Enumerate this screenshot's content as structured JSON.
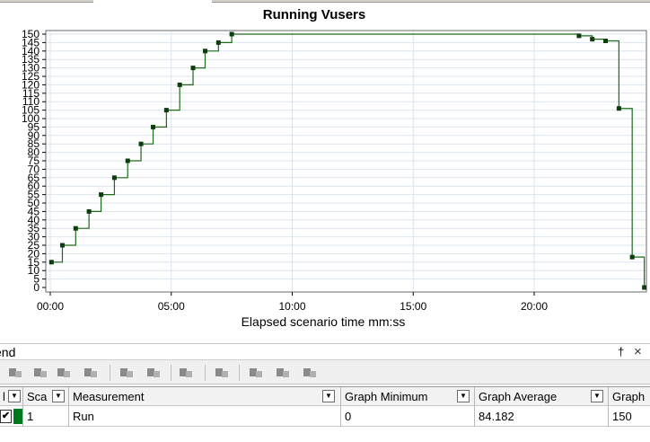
{
  "colors": {
    "series": "#1a6b1a",
    "marker": "#0d3d0d",
    "grid": "#dbe4ee",
    "swatch": "#007a1e"
  },
  "chart_data": {
    "type": "line",
    "title": "Running Vusers",
    "xlabel": "Elapsed scenario time mm:ss",
    "ylabel": "",
    "xlim": [
      0,
      24.6
    ],
    "ylim": [
      0,
      152
    ],
    "grid": true,
    "x_ticks": [
      {
        "value": 0,
        "label": "00:00"
      },
      {
        "value": 5,
        "label": "05:00"
      },
      {
        "value": 10,
        "label": "10:00"
      },
      {
        "value": 15,
        "label": "15:00"
      },
      {
        "value": 20,
        "label": "20:00"
      }
    ],
    "y_ticks": [
      0,
      5,
      10,
      15,
      20,
      25,
      30,
      35,
      40,
      45,
      50,
      55,
      60,
      65,
      70,
      75,
      80,
      85,
      90,
      95,
      100,
      105,
      110,
      115,
      120,
      125,
      130,
      135,
      140,
      145,
      150
    ],
    "series": [
      {
        "name": "Run",
        "step": true,
        "points": [
          [
            0.05,
            15
          ],
          [
            0.5,
            25
          ],
          [
            1.05,
            35
          ],
          [
            1.6,
            45
          ],
          [
            2.1,
            55
          ],
          [
            2.65,
            65
          ],
          [
            3.2,
            75
          ],
          [
            3.75,
            85
          ],
          [
            4.25,
            95
          ],
          [
            4.8,
            105
          ],
          [
            5.35,
            120
          ],
          [
            5.9,
            130
          ],
          [
            6.4,
            140
          ],
          [
            6.95,
            145
          ],
          [
            7.5,
            150
          ],
          [
            21.85,
            149
          ],
          [
            22.4,
            147
          ],
          [
            22.95,
            146
          ],
          [
            23.5,
            106
          ],
          [
            24.05,
            18
          ],
          [
            24.55,
            0
          ]
        ]
      }
    ]
  },
  "legend": {
    "title": "end",
    "pin_glyph": "†",
    "close_glyph": "×",
    "columns": [
      "l",
      "Sca",
      "Measurement",
      "Graph Minimum",
      "Graph Average",
      "Graph"
    ],
    "rows": [
      {
        "checked_glyph": "✔",
        "scale": "1",
        "measurement": "Run",
        "min": "0",
        "avg": "84.182",
        "max": "150"
      }
    ]
  }
}
